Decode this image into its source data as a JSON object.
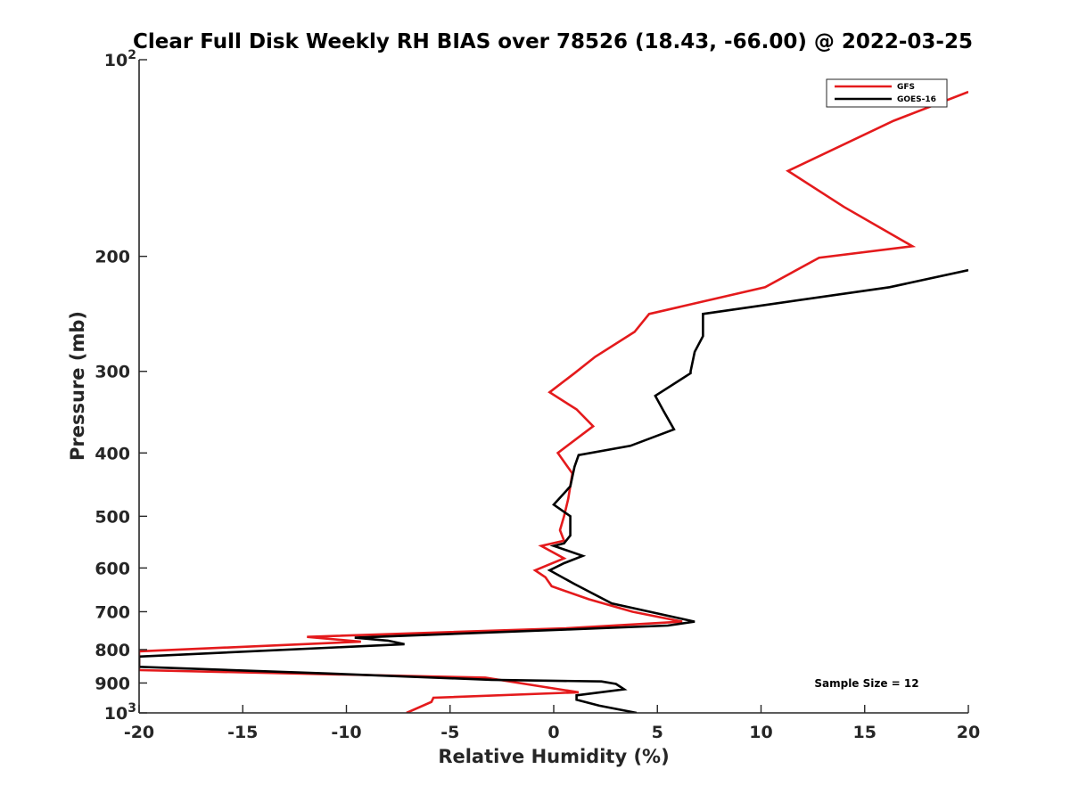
{
  "chart_data": {
    "type": "line",
    "title": "Clear Full Disk Weekly RH BIAS over 78526 (18.43, -66.00) @ 2022-03-25",
    "xlabel": "Relative Humidity (%)",
    "ylabel": "Pressure (mb)",
    "xlim": [
      -20,
      20
    ],
    "ylim": [
      100,
      1000
    ],
    "yscale": "log",
    "y_reversed": true,
    "grid": false,
    "legend_position": "top-right",
    "x_ticks": [
      -20,
      -15,
      -10,
      -5,
      0,
      5,
      10,
      15,
      20
    ],
    "x_tick_labels": [
      "-20",
      "-15",
      "-10",
      "-5",
      "0",
      "5",
      "10",
      "15",
      "20"
    ],
    "y_ticks": [
      {
        "value": 100,
        "base": "10",
        "exp": "2"
      },
      {
        "value": 200,
        "base": "200",
        "exp": ""
      },
      {
        "value": 300,
        "base": "300",
        "exp": ""
      },
      {
        "value": 400,
        "base": "400",
        "exp": ""
      },
      {
        "value": 500,
        "base": "500",
        "exp": ""
      },
      {
        "value": 600,
        "base": "600",
        "exp": ""
      },
      {
        "value": 700,
        "base": "700",
        "exp": ""
      },
      {
        "value": 800,
        "base": "800",
        "exp": ""
      },
      {
        "value": 900,
        "base": "900",
        "exp": ""
      },
      {
        "value": 1000,
        "base": "10",
        "exp": "3"
      }
    ],
    "annotation": "Sample Size = 12",
    "series": [
      {
        "name": "GFS",
        "color": "#e41a1c",
        "x": [
          20.0,
          16.4,
          11.3,
          14.0,
          17.3,
          12.8,
          10.2,
          4.6,
          3.9,
          2.0,
          1.0,
          -0.2,
          1.1,
          1.9,
          0.2,
          0.9,
          0.7,
          0.5,
          0.3,
          0.5,
          -0.6,
          0.5,
          -0.9,
          -0.4,
          -0.1,
          1.7,
          3.8,
          6.2,
          0.6,
          -11.9,
          -9.3,
          -20.0,
          -20.0,
          -3.3,
          -0.7,
          1.2,
          -5.8,
          -5.9,
          -7.1
        ],
        "y": [
          112,
          124,
          148,
          168,
          193,
          201,
          223,
          245,
          261,
          285,
          302,
          323,
          343,
          364,
          400,
          430,
          470,
          500,
          525,
          545,
          555,
          580,
          605,
          620,
          640,
          670,
          700,
          725,
          742,
          765,
          778,
          805,
          860,
          883,
          910,
          930,
          948,
          962,
          1000
        ]
      },
      {
        "name": "GOES-16",
        "color": "#000000",
        "x": [
          20.0,
          16.2,
          7.2,
          7.2,
          6.8,
          6.6,
          6.6,
          4.9,
          5.3,
          5.8,
          3.7,
          1.2,
          1.0,
          0.8,
          0.0,
          0.8,
          0.8,
          0.5,
          0.0,
          1.4,
          0.5,
          -0.2,
          1.0,
          2.8,
          6.8,
          5.5,
          0.8,
          -9.6,
          -8.0,
          -7.2,
          -20.0,
          -20.0,
          -11.0,
          -3.0,
          2.3,
          3.0,
          3.4,
          1.1,
          1.1,
          2.2,
          4.0
        ],
        "y": [
          210,
          223,
          245,
          265,
          280,
          300,
          302,
          327,
          345,
          368,
          390,
          403,
          420,
          450,
          480,
          500,
          535,
          550,
          555,
          575,
          590,
          605,
          635,
          680,
          725,
          735,
          745,
          767,
          775,
          785,
          820,
          850,
          870,
          890,
          895,
          903,
          920,
          940,
          955,
          975,
          1000
        ]
      }
    ]
  }
}
